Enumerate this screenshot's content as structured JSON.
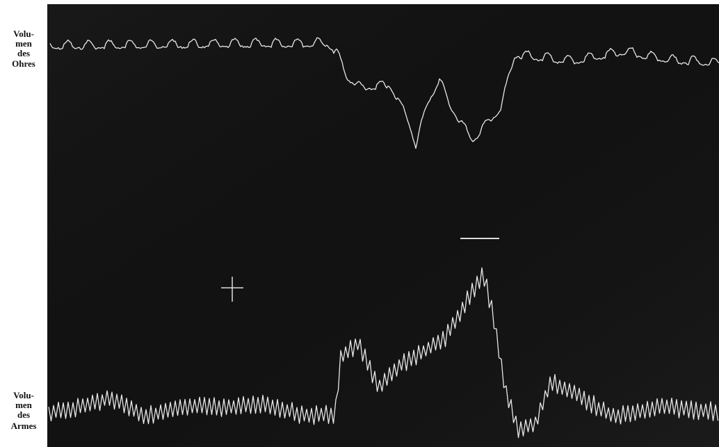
{
  "labels": {
    "ear": [
      "Volu-",
      "men",
      "des",
      "Ohres"
    ],
    "arm": [
      "Volu-",
      "men",
      "des",
      "Armes"
    ]
  }
}
